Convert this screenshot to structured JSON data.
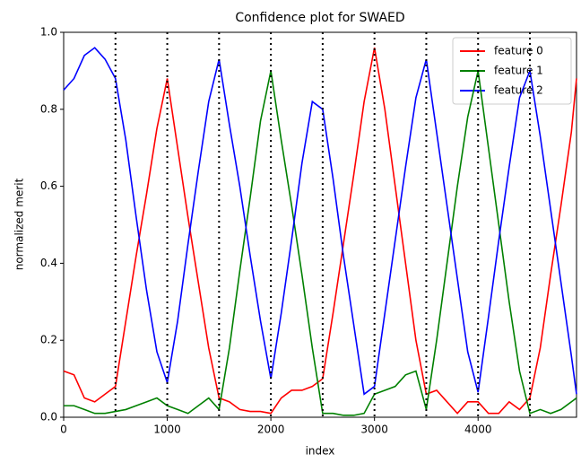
{
  "chart_data": {
    "type": "line",
    "title": "Confidence plot for SWAED",
    "xlabel": "index",
    "ylabel": "normalized merit",
    "x": [
      0,
      100,
      200,
      300,
      400,
      500,
      600,
      700,
      800,
      900,
      1000,
      1100,
      1200,
      1300,
      1400,
      1500,
      1600,
      1700,
      1800,
      1900,
      2000,
      2100,
      2200,
      2300,
      2400,
      2500,
      2600,
      2700,
      2800,
      2900,
      3000,
      3100,
      3200,
      3300,
      3400,
      3500,
      3600,
      3700,
      3800,
      3900,
      4000,
      4100,
      4200,
      4300,
      4400,
      4500,
      4600,
      4700,
      4800,
      4900,
      4950
    ],
    "series": [
      {
        "name": "feature 0",
        "color": "#ff0000",
        "values": [
          0.12,
          0.11,
          0.05,
          0.04,
          0.06,
          0.08,
          0.25,
          0.42,
          0.58,
          0.75,
          0.88,
          0.7,
          0.52,
          0.35,
          0.18,
          0.05,
          0.04,
          0.02,
          0.015,
          0.015,
          0.01,
          0.05,
          0.07,
          0.07,
          0.08,
          0.1,
          0.27,
          0.45,
          0.63,
          0.82,
          0.96,
          0.8,
          0.6,
          0.4,
          0.2,
          0.06,
          0.07,
          0.04,
          0.01,
          0.04,
          0.04,
          0.01,
          0.01,
          0.04,
          0.02,
          0.05,
          0.18,
          0.37,
          0.55,
          0.74,
          0.88
        ]
      },
      {
        "name": "feature 1",
        "color": "#008000",
        "values": [
          0.03,
          0.03,
          0.02,
          0.01,
          0.01,
          0.015,
          0.02,
          0.03,
          0.04,
          0.05,
          0.03,
          0.02,
          0.01,
          0.03,
          0.05,
          0.02,
          0.18,
          0.38,
          0.57,
          0.77,
          0.9,
          0.72,
          0.55,
          0.37,
          0.18,
          0.01,
          0.01,
          0.005,
          0.005,
          0.01,
          0.06,
          0.07,
          0.08,
          0.11,
          0.12,
          0.02,
          0.2,
          0.4,
          0.6,
          0.78,
          0.9,
          0.7,
          0.5,
          0.3,
          0.12,
          0.01,
          0.02,
          0.01,
          0.02,
          0.04,
          0.05
        ]
      },
      {
        "name": "feature 2",
        "color": "#0000ff",
        "values": [
          0.85,
          0.88,
          0.94,
          0.96,
          0.93,
          0.88,
          0.72,
          0.52,
          0.33,
          0.17,
          0.09,
          0.25,
          0.45,
          0.64,
          0.82,
          0.93,
          0.76,
          0.6,
          0.42,
          0.25,
          0.1,
          0.27,
          0.46,
          0.66,
          0.82,
          0.8,
          0.62,
          0.42,
          0.24,
          0.06,
          0.08,
          0.27,
          0.46,
          0.65,
          0.83,
          0.93,
          0.74,
          0.55,
          0.36,
          0.17,
          0.065,
          0.26,
          0.46,
          0.65,
          0.83,
          0.9,
          0.73,
          0.54,
          0.35,
          0.16,
          0.06
        ]
      }
    ],
    "vlines": [
      500,
      1000,
      1500,
      2000,
      2500,
      3000,
      3500,
      4000,
      4500
    ],
    "xlim": [
      0,
      4950
    ],
    "ylim": [
      0,
      1
    ],
    "xticks": [
      0,
      1000,
      2000,
      3000,
      4000
    ],
    "yticks": [
      {
        "value": 0,
        "label": "0.0"
      },
      0.2,
      0.4,
      0.6,
      0.8,
      {
        "value": 1,
        "label": "1.0"
      }
    ],
    "legend": "upper right"
  }
}
